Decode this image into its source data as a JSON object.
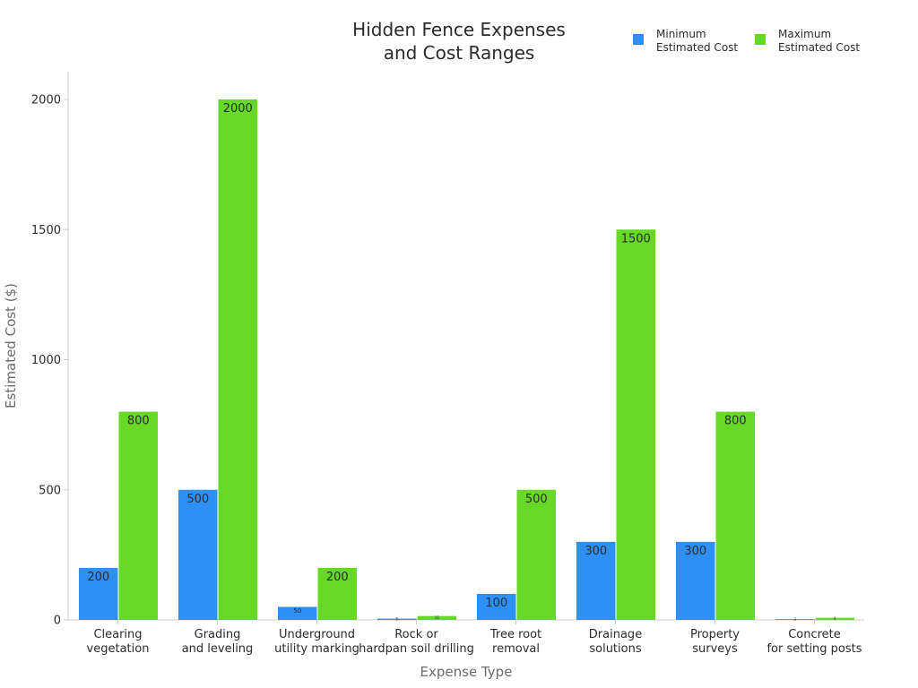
{
  "chart_data": {
    "type": "bar",
    "title": [
      "Hidden Fence Expenses",
      "and Cost Ranges"
    ],
    "xlabel": "Expense Type",
    "ylabel": "Estimated Cost ($)",
    "ylim": [
      0,
      2100
    ],
    "yticks": [
      0,
      500,
      1000,
      1500,
      2000
    ],
    "grid": false,
    "legend_position": "top-right",
    "categories": [
      [
        "Clearing",
        "vegetation"
      ],
      [
        "Grading",
        "and leveling"
      ],
      [
        "Underground",
        "utility marking"
      ],
      [
        "Rock or",
        "hardpan soil drilling"
      ],
      [
        "Tree root",
        "removal"
      ],
      [
        "Drainage",
        "solutions"
      ],
      [
        "Property",
        "surveys"
      ],
      [
        "Concrete",
        "for setting posts"
      ]
    ],
    "series": [
      {
        "name": [
          "Minimum",
          "Estimated Cost"
        ],
        "color": "#2e90f7",
        "values": [
          200,
          500,
          50,
          5,
          100,
          300,
          300,
          3
        ]
      },
      {
        "name": [
          "Maximum",
          "Estimated Cost"
        ],
        "color": "#66d927",
        "values": [
          800,
          2000,
          200,
          15,
          500,
          1500,
          800,
          8
        ]
      }
    ]
  }
}
